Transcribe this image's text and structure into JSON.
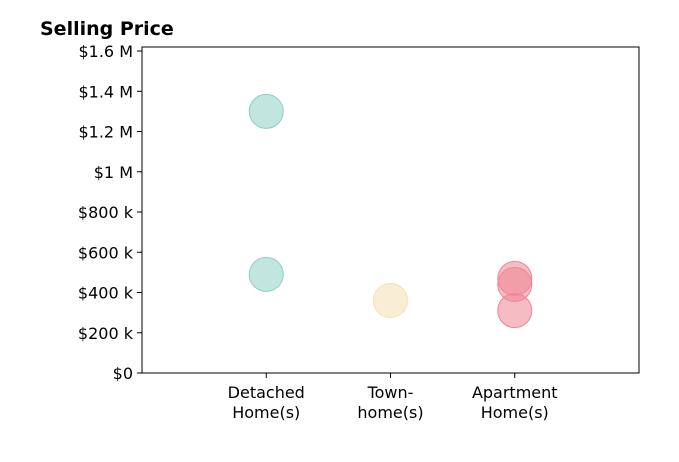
{
  "chart_data": {
    "type": "scatter",
    "title": "Selling Price",
    "xlabel": "",
    "ylabel": "",
    "categories": [
      [
        "Detached",
        "Home(s)"
      ],
      [
        "Town-",
        "home(s)"
      ],
      [
        "Apartment",
        "Home(s)"
      ]
    ],
    "xlim": [
      0,
      4
    ],
    "ylim": [
      0,
      1620000
    ],
    "yticks": [
      {
        "value": 0,
        "label": "$0"
      },
      {
        "value": 200000,
        "label": "$200 k"
      },
      {
        "value": 400000,
        "label": "$400 k"
      },
      {
        "value": 600000,
        "label": "$600 k"
      },
      {
        "value": 800000,
        "label": "$800 k"
      },
      {
        "value": 1000000,
        "label": "$1 M"
      },
      {
        "value": 1200000,
        "label": "$1.2 M"
      },
      {
        "value": 1400000,
        "label": "$1.4 M"
      },
      {
        "value": 1600000,
        "label": "$1.6 M"
      }
    ],
    "grid": false,
    "series": [
      {
        "category_index": 0,
        "color": "#8ecfc5",
        "points": [
          1300000,
          490000
        ]
      },
      {
        "category_index": 1,
        "color": "#f5deb3",
        "points": [
          360000
        ]
      },
      {
        "category_index": 2,
        "color": "#ef8593",
        "points": [
          470000,
          440000,
          310000
        ]
      }
    ]
  }
}
